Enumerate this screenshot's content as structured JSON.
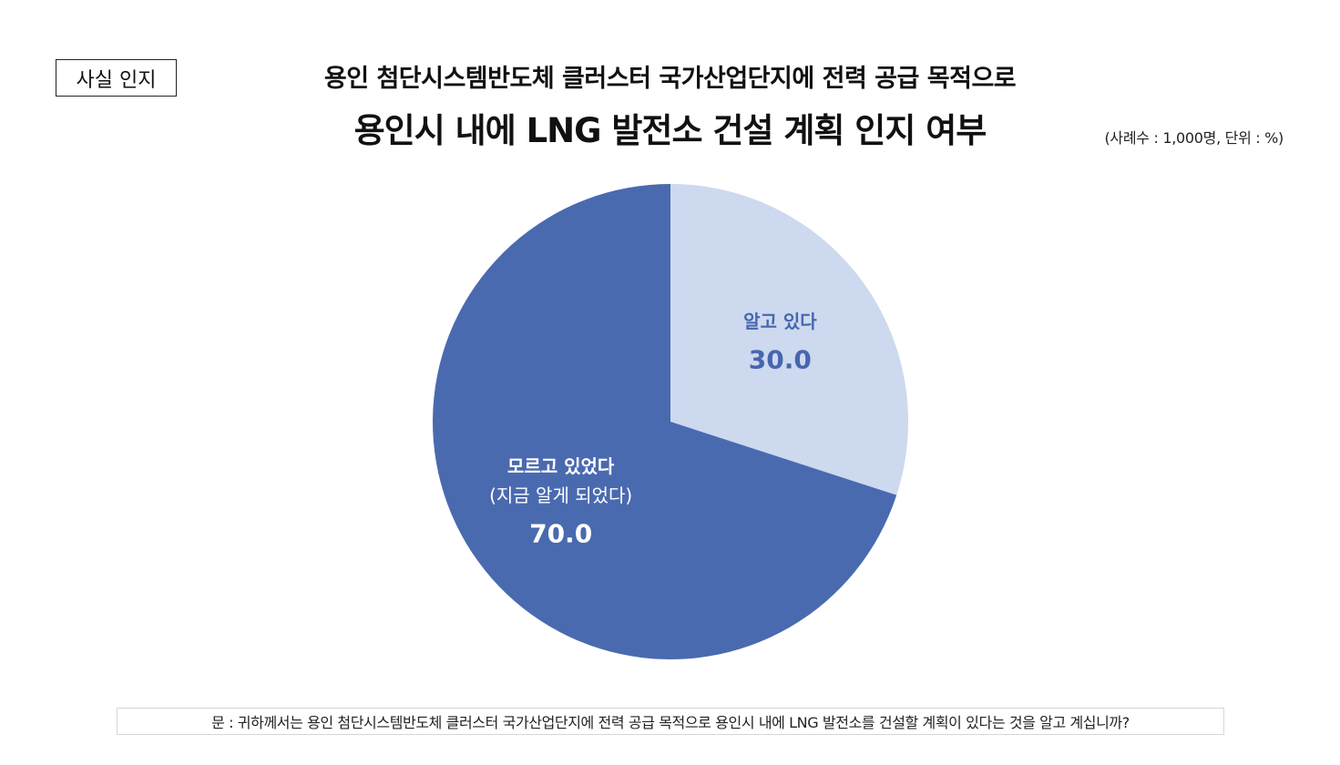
{
  "badge": "사실 인지",
  "title": {
    "line1": "용인 첨단시스템반도체 클러스터 국가산업단지에 전력 공급 목적으로",
    "line2": "용인시 내에 LNG 발전소 건설 계획 인지 여부"
  },
  "note": "(사례수 : 1,000명, 단위 : %)",
  "footnote": "문 : 귀하께서는 용인 첨단시스템반도체 클러스터 국가산업단지에 전력 공급 목적으로 용인시 내에 LNG 발전소를 건설할 계획이 있다는 것을 알고 계십니까?",
  "colors": {
    "dark_slice": "#4a6ab0",
    "light_slice": "#cdd9ef",
    "dark_label": "#ffffff",
    "light_label": "#4667ae"
  },
  "chart_data": {
    "type": "pie",
    "title": "용인시 내에 LNG 발전소 건설 계획 인지 여부",
    "unit": "%",
    "slices": [
      {
        "label": "알고 있다",
        "sublabel": "",
        "value": 30.0,
        "value_text": "30.0",
        "color": "#cdd9ef",
        "text_color": "#4667ae"
      },
      {
        "label": "모르고 있었다",
        "sublabel": "(지금 알게 되었다)",
        "value": 70.0,
        "value_text": "70.0",
        "color": "#4a6ab0",
        "text_color": "#ffffff"
      }
    ]
  }
}
